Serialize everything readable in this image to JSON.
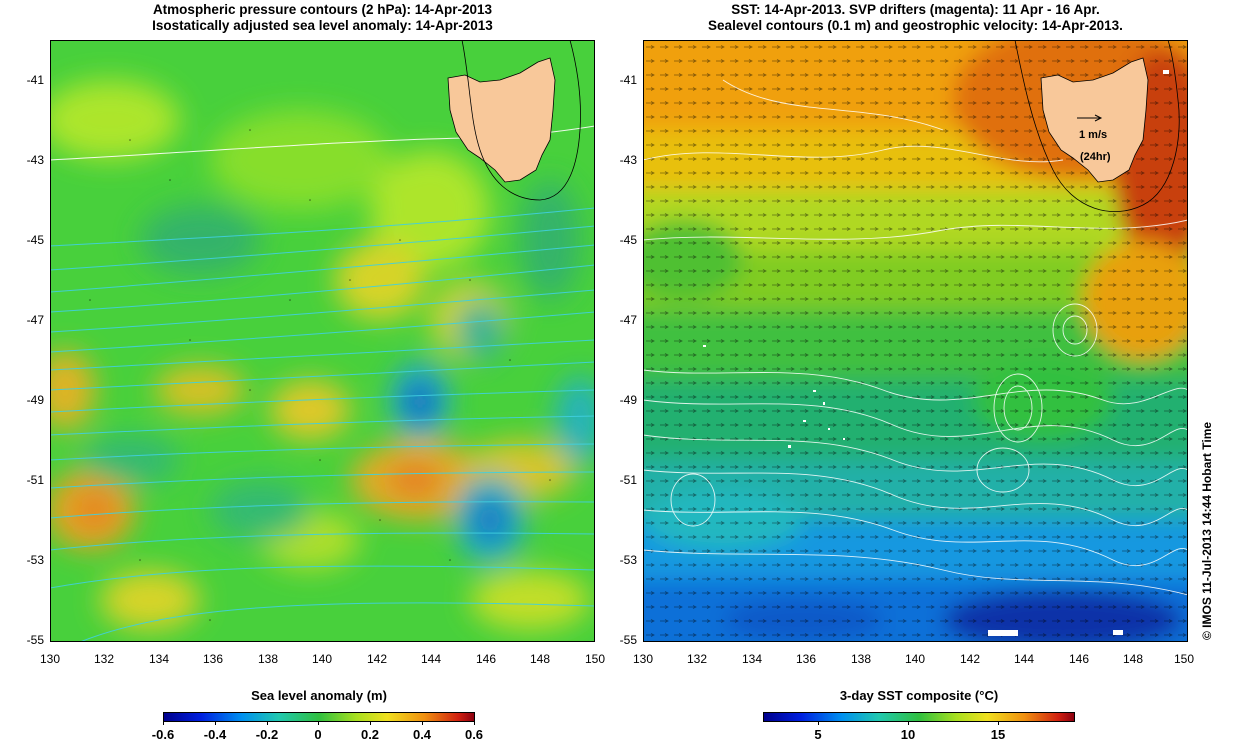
{
  "left_panel": {
    "title_line1": "Atmospheric pressure contours (2 hPa): 14-Apr-2013",
    "title_line2": "Isostatically adjusted sea level anomaly: 14-Apr-2013"
  },
  "right_panel": {
    "title_line1": "SST: 14-Apr-2013. SVP drifters (magenta): 11 Apr - 16 Apr.",
    "title_line2": "Sealevel contours (0.1 m) and geostrophic velocity: 14-Apr-2013.",
    "vector_scale_label": "1 m/s",
    "vector_time_label": "(24hr)"
  },
  "axes": {
    "lat_ticks": [
      "-41",
      "-43",
      "-45",
      "-47",
      "-49",
      "-51",
      "-53",
      "-55"
    ],
    "lon_ticks": [
      "130",
      "132",
      "134",
      "136",
      "138",
      "140",
      "142",
      "144",
      "146",
      "148",
      "150"
    ]
  },
  "colorbars": {
    "left": {
      "title": "Sea level anomaly (m)",
      "ticks": [
        "-0.6",
        "-0.4",
        "-0.2",
        "0",
        "0.2",
        "0.4",
        "0.6"
      ]
    },
    "right": {
      "title": "3-day SST composite (°C)",
      "ticks": [
        "5",
        "10",
        "15"
      ]
    }
  },
  "credit": "© IMOS 11-Jul-2013 14:44 Hobart Time",
  "colors": {
    "land": "#f8c89a",
    "pressure_contours": "#40d0e0",
    "sst_contours": "#ffffff"
  }
}
